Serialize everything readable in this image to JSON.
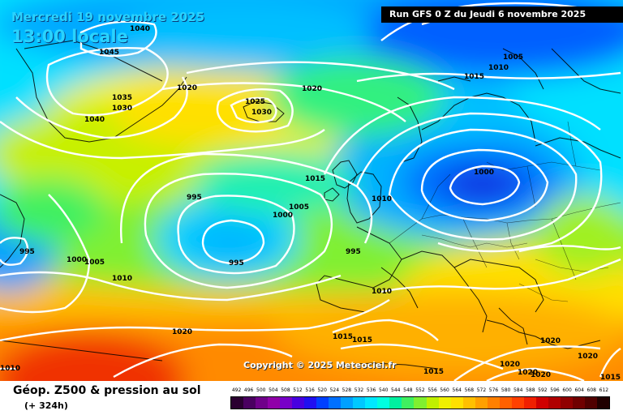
{
  "header": {
    "date": "Mercredi 19 novembre 2025",
    "time": "13:00 locale",
    "run": "Run GFS 0 Z du Jeudi 6 novembre 2025"
  },
  "copyright": "Copyright © 2025 Meteociel.fr",
  "legend": {
    "title": "Géop. Z500 & pression au sol",
    "subtitle": "(+ 324h)",
    "labels": [
      "492",
      "496",
      "500",
      "504",
      "508",
      "512",
      "516",
      "520",
      "524",
      "528",
      "532",
      "536",
      "540",
      "544",
      "548",
      "552",
      "556",
      "560",
      "564",
      "568",
      "572",
      "576",
      "580",
      "584",
      "588",
      "592",
      "596",
      "600",
      "604",
      "608",
      "612"
    ],
    "colors": [
      "#2a0030",
      "#4a0060",
      "#70008a",
      "#9000a8",
      "#7800c8",
      "#4800e0",
      "#2010f0",
      "#0040ff",
      "#0070ff",
      "#00a0ff",
      "#00c8ff",
      "#00e8ff",
      "#00ffe0",
      "#00f0a0",
      "#40f060",
      "#80f030",
      "#c0f000",
      "#f0f000",
      "#ffe000",
      "#ffc000",
      "#ffa000",
      "#ff8000",
      "#ff6000",
      "#ff4000",
      "#f02000",
      "#d00000",
      "#b00000",
      "#900000",
      "#700000",
      "#500000",
      "#200000"
    ]
  },
  "isobars": [
    {
      "value": "1040"
    },
    {
      "value": "1045"
    },
    {
      "value": "1035"
    },
    {
      "value": "1030"
    },
    {
      "value": "1040"
    },
    {
      "value": "1020"
    },
    {
      "value": "1025"
    },
    {
      "value": "1030"
    },
    {
      "value": "1020"
    },
    {
      "value": "1005"
    },
    {
      "value": "1010"
    },
    {
      "value": "1015"
    },
    {
      "value": "1000"
    },
    {
      "value": "995"
    },
    {
      "value": "1005"
    },
    {
      "value": "1000"
    },
    {
      "value": "1010"
    },
    {
      "value": "995"
    },
    {
      "value": "995"
    },
    {
      "value": "995"
    },
    {
      "value": "1000"
    },
    {
      "value": "1005"
    },
    {
      "value": "1010"
    },
    {
      "value": "1015"
    },
    {
      "value": "1010"
    },
    {
      "value": "1020"
    },
    {
      "value": "1015"
    },
    {
      "value": "1015"
    },
    {
      "value": "1015"
    },
    {
      "value": "1010"
    },
    {
      "value": "1020"
    },
    {
      "value": "1020"
    },
    {
      "value": "1020"
    },
    {
      "value": "1020"
    },
    {
      "value": "1020"
    },
    {
      "value": "1015"
    }
  ]
}
